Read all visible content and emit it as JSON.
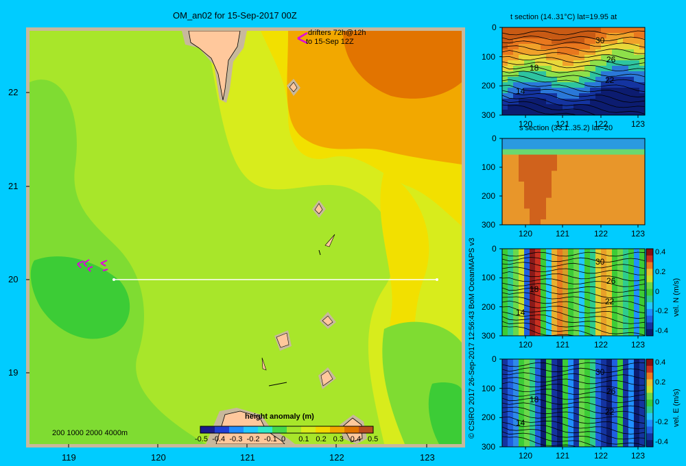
{
  "main_map": {
    "title": "OM_an02 for 15-Sep-2017 00Z",
    "drifter_note_line1": "drifters 72h@12h",
    "drifter_note_line2": "to 15-Sep 12Z",
    "depth_legend": "200  1000  2000  4000m",
    "lat_ticks": [
      "22",
      "21",
      "20",
      "19"
    ],
    "lon_ticks": [
      "119",
      "120",
      "121",
      "122",
      "123"
    ]
  },
  "colorbar": {
    "title": "height anomaly  (m)",
    "ticks": [
      "-0.5",
      "-0.4",
      "-0.3",
      "-0.2",
      "-0.1",
      "0",
      "0.1",
      "0.2",
      "0.3",
      "0.4",
      "0.5"
    ],
    "colors": [
      "#1b1b8a",
      "#1f3fd6",
      "#1f8fff",
      "#22c8ff",
      "#2ee8c8",
      "#44d84a",
      "#a8e62a",
      "#d8ec1c",
      "#f2d800",
      "#f2a800",
      "#e27400",
      "#b84e1e"
    ]
  },
  "credit": "© CSIRO 2017  26-Sep-2017 12:56:43 BoM OceanMAPS v3",
  "panels": {
    "t_section": {
      "title": "t section (14..31°C) lat=19.95 at",
      "y_ticks": [
        "0",
        "100",
        "200",
        "300"
      ],
      "x_ticks": [
        "120",
        "121",
        "122",
        "123"
      ],
      "contour_labels": [
        "30",
        "26",
        "22",
        "18",
        "14"
      ]
    },
    "s_section": {
      "title": "s section (33.1..35.2) lat=20",
      "y_ticks": [
        "0",
        "100",
        "200",
        "300"
      ],
      "x_ticks": [
        "120",
        "121",
        "122",
        "123"
      ]
    },
    "vel_n": {
      "y_ticks": [
        "0",
        "100",
        "200",
        "300"
      ],
      "x_ticks": [
        "120",
        "121",
        "122",
        "123"
      ],
      "contour_labels": [
        "30",
        "26",
        "22",
        "18",
        "14"
      ],
      "cb_ticks": [
        "0.4",
        "0.2",
        "0",
        "-0.2",
        "-0.4"
      ],
      "cb_label": "vel. N (m/s)"
    },
    "vel_e": {
      "y_ticks": [
        "0",
        "100",
        "200",
        "300"
      ],
      "x_ticks": [
        "120",
        "121",
        "122",
        "123"
      ],
      "contour_labels": [
        "30",
        "26",
        "22",
        "18",
        "14"
      ],
      "cb_ticks": [
        "0.4",
        "0.2",
        "0",
        "-0.2",
        "-0.4"
      ],
      "cb_label": "vel. E (m/s)"
    }
  }
}
